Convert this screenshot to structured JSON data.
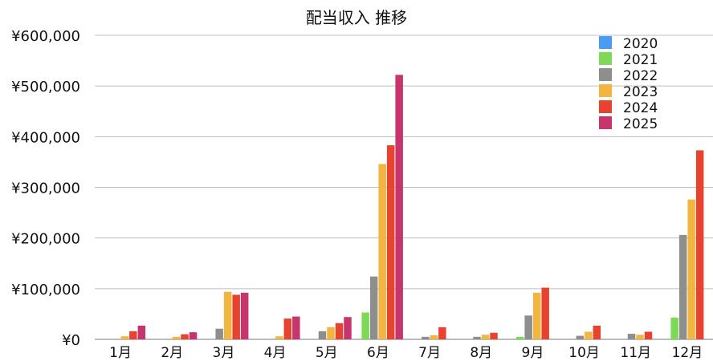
{
  "chart_data": {
    "type": "bar",
    "title": "配当収入 推移",
    "xlabel": "",
    "ylabel": "",
    "ylim": [
      0,
      600000
    ],
    "yticks": [
      "¥0",
      "¥100,000",
      "¥200,000",
      "¥300,000",
      "¥400,000",
      "¥500,000",
      "¥600,000"
    ],
    "ytick_values": [
      0,
      100000,
      200000,
      300000,
      400000,
      500000,
      600000
    ],
    "categories": [
      "1月",
      "2月",
      "3月",
      "4月",
      "5月",
      "6月",
      "7月",
      "8月",
      "9月",
      "10月",
      "11月",
      "12月"
    ],
    "grid": true,
    "legend_position": "top-right",
    "series": [
      {
        "name": "2020",
        "color": "#4a9cf0",
        "values": [
          0,
          0,
          0,
          0,
          0,
          0,
          0,
          0,
          0,
          0,
          0,
          0
        ]
      },
      {
        "name": "2021",
        "color": "#7ed957",
        "values": [
          0,
          0,
          0,
          0,
          0,
          53000,
          0,
          0,
          5000,
          0,
          0,
          43000
        ]
      },
      {
        "name": "2022",
        "color": "#8e8e8e",
        "values": [
          0,
          0,
          21000,
          0,
          16000,
          124000,
          5000,
          5000,
          47000,
          7000,
          11000,
          206000
        ]
      },
      {
        "name": "2023",
        "color": "#f2b640",
        "values": [
          6000,
          5000,
          94000,
          6000,
          24000,
          346000,
          8000,
          9000,
          92000,
          15000,
          9000,
          276000
        ]
      },
      {
        "name": "2024",
        "color": "#e8432e",
        "values": [
          16000,
          10000,
          88000,
          41000,
          32000,
          383000,
          24000,
          13000,
          102000,
          27000,
          15000,
          373000
        ]
      },
      {
        "name": "2025",
        "color": "#c7356e",
        "values": [
          27000,
          14000,
          92000,
          45000,
          44000,
          522000,
          0,
          0,
          0,
          0,
          0,
          0
        ]
      }
    ]
  }
}
